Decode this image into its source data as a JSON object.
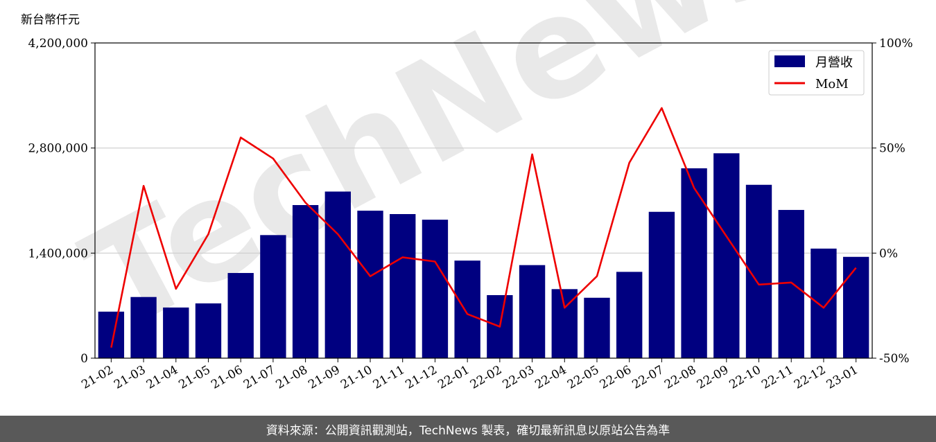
{
  "watermark": "TechNews",
  "footer": {
    "source_text": "資料來源：公開資訊觀測站，TechNews 製表，確切最新訊息以原站公告為準"
  },
  "colors": {
    "bar": "#000080",
    "line": "#ee0000",
    "grid": "#cccccc",
    "watermark": "#d8d8d8",
    "watermark_accent": "#f5c6c6"
  },
  "chart_data": {
    "type": "bar",
    "y_unit_label": "新台幣仟元",
    "categories": [
      "21-02",
      "21-03",
      "21-04",
      "21-05",
      "21-06",
      "21-07",
      "21-08",
      "21-09",
      "21-10",
      "21-11",
      "21-12",
      "22-01",
      "22-02",
      "22-03",
      "22-04",
      "22-05",
      "22-06",
      "22-07",
      "22-08",
      "22-09",
      "22-10",
      "22-11",
      "22-12",
      "23-01"
    ],
    "series": [
      {
        "name": "月營收",
        "axis": "left",
        "kind": "bar",
        "values": [
          620000,
          815000,
          675000,
          730000,
          1135000,
          1640000,
          2040000,
          2220000,
          1965000,
          1920000,
          1845000,
          1300000,
          840000,
          1240000,
          920000,
          805000,
          1150000,
          1950000,
          2530000,
          2730000,
          2310000,
          1975000,
          1460000,
          1350000
        ]
      },
      {
        "name": "MoM",
        "axis": "right",
        "kind": "line",
        "unit": "%",
        "values": [
          -45,
          32,
          -17,
          9,
          55,
          45,
          24,
          9,
          -11,
          -2,
          -4,
          -29,
          -35,
          47,
          -26,
          -11,
          43,
          69,
          31,
          8,
          -15,
          -14,
          -26,
          -7
        ]
      }
    ],
    "y_left": {
      "min": 0,
      "max": 4200000,
      "ticks": [
        0,
        1400000,
        2800000,
        4200000
      ],
      "tick_labels": [
        "0",
        "1,400,000",
        "2,800,000",
        "4,200,000"
      ]
    },
    "y_right": {
      "min": -50,
      "max": 100,
      "ticks": [
        -50,
        0,
        50,
        100
      ],
      "tick_labels": [
        "-50%",
        "0%",
        "50%",
        "100%"
      ]
    },
    "grid": "horizontal",
    "legend_position": "top-right"
  }
}
